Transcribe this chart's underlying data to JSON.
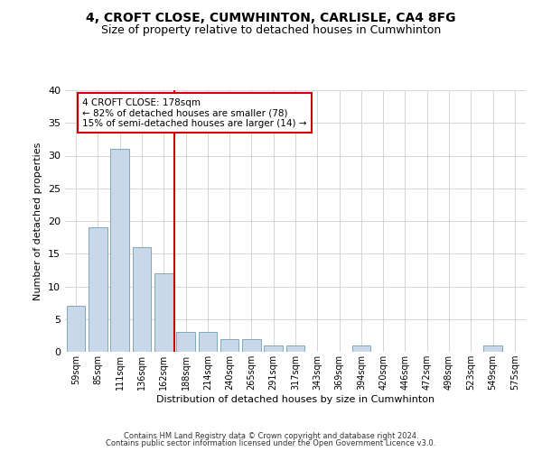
{
  "title1": "4, CROFT CLOSE, CUMWHINTON, CARLISLE, CA4 8FG",
  "title2": "Size of property relative to detached houses in Cumwhinton",
  "xlabel": "Distribution of detached houses by size in Cumwhinton",
  "ylabel": "Number of detached properties",
  "categories": [
    "59sqm",
    "85sqm",
    "111sqm",
    "136sqm",
    "162sqm",
    "188sqm",
    "214sqm",
    "240sqm",
    "265sqm",
    "291sqm",
    "317sqm",
    "343sqm",
    "369sqm",
    "394sqm",
    "420sqm",
    "446sqm",
    "472sqm",
    "498sqm",
    "523sqm",
    "549sqm",
    "575sqm"
  ],
  "values": [
    7,
    19,
    31,
    16,
    12,
    3,
    3,
    2,
    2,
    1,
    1,
    0,
    0,
    1,
    0,
    0,
    0,
    0,
    0,
    1,
    0
  ],
  "bar_color": "#c8d8e8",
  "bar_edge_color": "#7aaabb",
  "vline_x": 4.5,
  "vline_color": "#cc0000",
  "annotation_line1": "4 CROFT CLOSE: 178sqm",
  "annotation_line2": "← 82% of detached houses are smaller (78)",
  "annotation_line3": "15% of semi-detached houses are larger (14) →",
  "annotation_box_color": "#ffffff",
  "annotation_box_edge": "#cc0000",
  "ylim": [
    0,
    40
  ],
  "yticks": [
    0,
    5,
    10,
    15,
    20,
    25,
    30,
    35,
    40
  ],
  "footnote1": "Contains HM Land Registry data © Crown copyright and database right 2024.",
  "footnote2": "Contains public sector information licensed under the Open Government Licence v3.0.",
  "bg_color": "#ffffff",
  "grid_color": "#d0d0d0",
  "title1_fontsize": 10,
  "title2_fontsize": 9,
  "xlabel_fontsize": 8,
  "ylabel_fontsize": 8,
  "xtick_fontsize": 7,
  "ytick_fontsize": 8,
  "annot_fontsize": 7.5,
  "footnote_fontsize": 6
}
